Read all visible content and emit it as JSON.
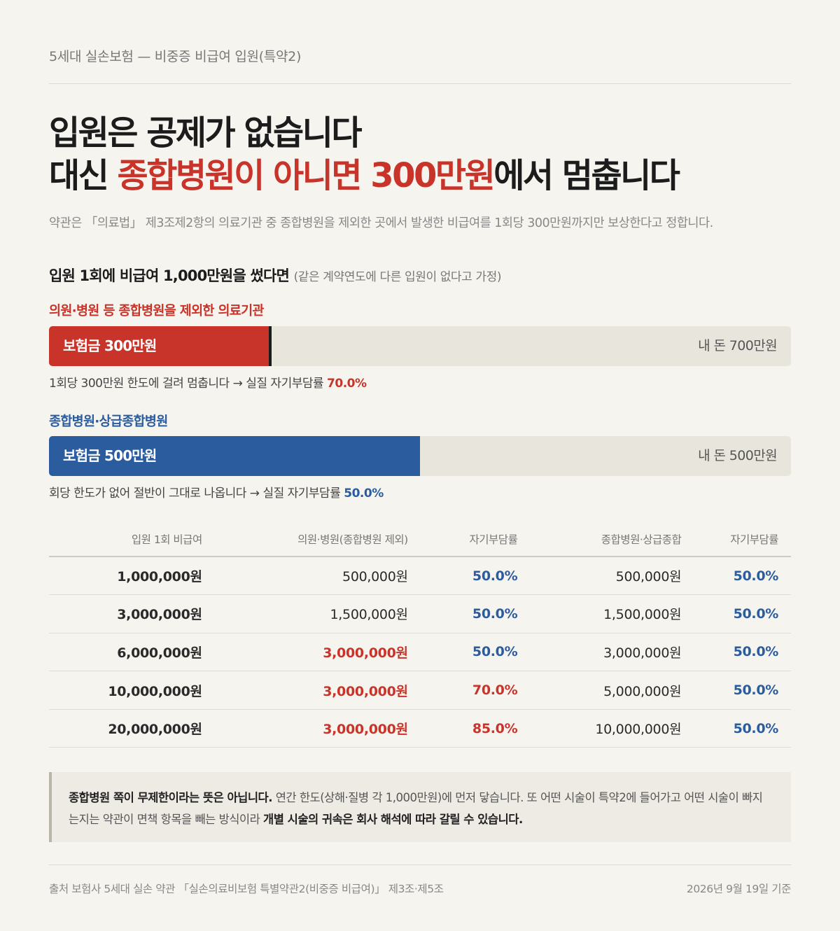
{
  "eyebrow": "5세대 실손보험 — 비중증 비급여 입원(특약2)",
  "headline": {
    "line1": "입원은 공제가 없습니다",
    "line2_a": "대신 ",
    "line2_red": "종합병원이 아니면 300만원",
    "line2_b": "에서 멈춥니다"
  },
  "lede": "약관은 「의료법」 제3조제2항의 의료기관 중 종합병원을 제외한 곳에서 발생한 비급여를 1회당 300만원까지만 보상한다고 정합니다.",
  "scenario": {
    "title": "입원 1회에 비급여 1,000만원을 썼다면",
    "assumption": "(같은 계약연도에 다른 입원이 없다고 가정)"
  },
  "bars": [
    {
      "label": "의원·병원 등 종합병원을 제외한 의료기관",
      "insured_label": "보험금 300만원",
      "own_label": "내 돈 700만원",
      "insured_fraction": 0.3,
      "note": "1회당 300만원 한도에 걸려 멈춥니다 → 실질 자기부담률",
      "note_value": "70.0%",
      "color": "#c8342a"
    },
    {
      "label": "종합병원·상급종합병원",
      "insured_label": "보험금 500만원",
      "own_label": "내 돈 500만원",
      "insured_fraction": 0.5,
      "note": "회당 한도가 없어 절반이 그대로 나옵니다 → 실질 자기부담률",
      "note_value": "50.0%",
      "color": "#2b5c9e"
    }
  ],
  "table": {
    "headers": [
      "입원 1회 비급여",
      "의원·병원(종합병원 제외)",
      "자기부담률",
      "종합병원·상급종합",
      "자기부담률"
    ],
    "rows": [
      [
        "1,000,000원",
        "500,000원",
        "50.0%",
        "500,000원",
        "50.0%"
      ],
      [
        "3,000,000원",
        "1,500,000원",
        "50.0%",
        "1,500,000원",
        "50.0%"
      ],
      [
        "6,000,000원",
        "3,000,000원",
        "50.0%",
        "3,000,000원",
        "50.0%"
      ],
      [
        "10,000,000원",
        "3,000,000원",
        "70.0%",
        "5,000,000원",
        "50.0%"
      ],
      [
        "20,000,000원",
        "3,000,000원",
        "85.0%",
        "10,000,000원",
        "50.0%"
      ]
    ]
  },
  "callout": {
    "bold1": "종합병원 쪽이 무제한이라는 뜻은 아닙니다.",
    "text1": " 연간 한도(상해·질병 각 1,000만원)에 먼저 닿습니다. 또 어떤 시술이 특약2에 들어가고 어떤 시술이 빠지는지는 약관이 면책 항목을 빼는 방식이라 ",
    "bold2": "개별 시술의 귀속은 회사 해석에 따라 갈릴 수 있습니다."
  },
  "footer": {
    "source": "출처 보험사 5세대 실손 약관 「실손의료비보험 특별약관2(비중증 비급여)」 제3조·제5조",
    "as_of": "2026년 9월 19일 기준"
  },
  "colors": {
    "accent_red": "#c8342a",
    "accent_blue": "#2b5c9e",
    "background": "#f6f4ef"
  }
}
